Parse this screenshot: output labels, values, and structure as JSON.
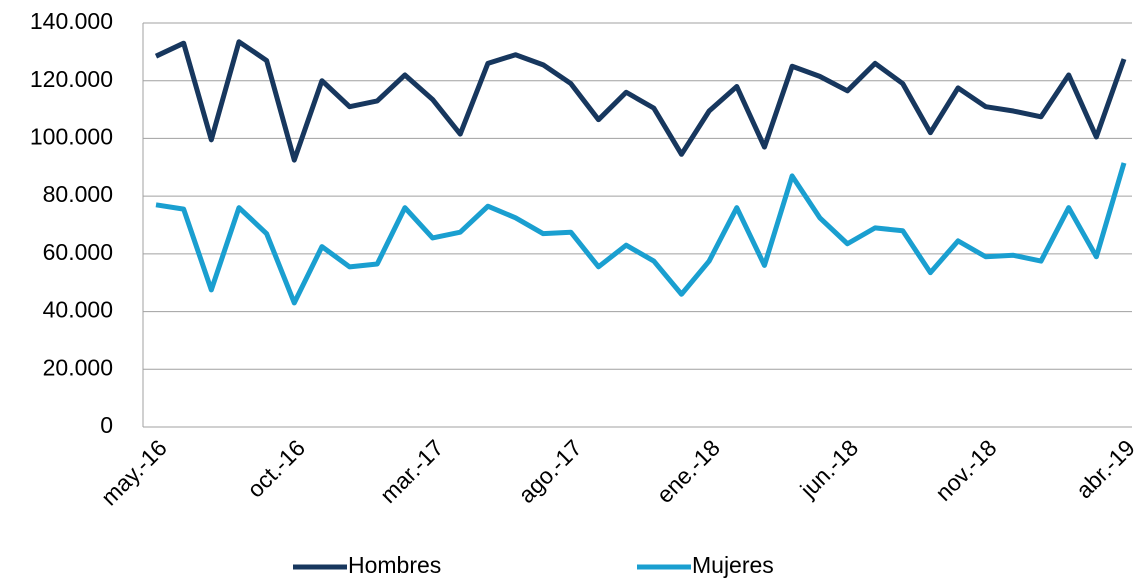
{
  "chart_data": {
    "type": "line",
    "categories": [
      "may.-16",
      null,
      null,
      null,
      null,
      "oct.-16",
      null,
      null,
      null,
      null,
      "mar.-17",
      null,
      null,
      null,
      null,
      "ago.-17",
      null,
      null,
      null,
      null,
      "ene.-18",
      null,
      null,
      null,
      null,
      "jun.-18",
      null,
      null,
      null,
      null,
      "nov.-18",
      null,
      null,
      null,
      null,
      "abr.-19"
    ],
    "series": [
      {
        "name": "Hombres",
        "color": "#17375e",
        "values": [
          128500,
          133000,
          99500,
          133500,
          127000,
          92500,
          120000,
          111000,
          113000,
          122000,
          113500,
          101500,
          126000,
          129000,
          125500,
          119000,
          106500,
          116000,
          110500,
          94500,
          109500,
          118000,
          97000,
          125000,
          121500,
          116500,
          126000,
          119000,
          102000,
          117500,
          111000,
          109500,
          107500,
          122000,
          100500,
          127500
        ]
      },
      {
        "name": "Mujeres",
        "color": "#1a9fd0",
        "values": [
          77000,
          75500,
          47500,
          76000,
          67000,
          43000,
          62500,
          55500,
          56500,
          76000,
          65500,
          67500,
          76500,
          72500,
          67000,
          67500,
          55500,
          63000,
          57500,
          46000,
          57500,
          76000,
          56000,
          87000,
          72500,
          63500,
          69000,
          68000,
          53500,
          64500,
          59000,
          59500,
          57500,
          76000,
          59000,
          91500
        ]
      }
    ],
    "ylim": [
      0,
      140000
    ],
    "yticks": [
      0,
      {
        "value": 20000,
        "label": "20.000"
      },
      {
        "value": 40000,
        "label": "40.000"
      },
      {
        "value": 60000,
        "label": "60.000"
      },
      {
        "value": 80000,
        "label": "80.000"
      },
      {
        "value": 100000,
        "label": "100.000"
      },
      {
        "value": 120000,
        "label": "120.000"
      },
      {
        "value": 140000,
        "label": "140.000"
      }
    ],
    "grid": true,
    "legend": "bottom"
  }
}
